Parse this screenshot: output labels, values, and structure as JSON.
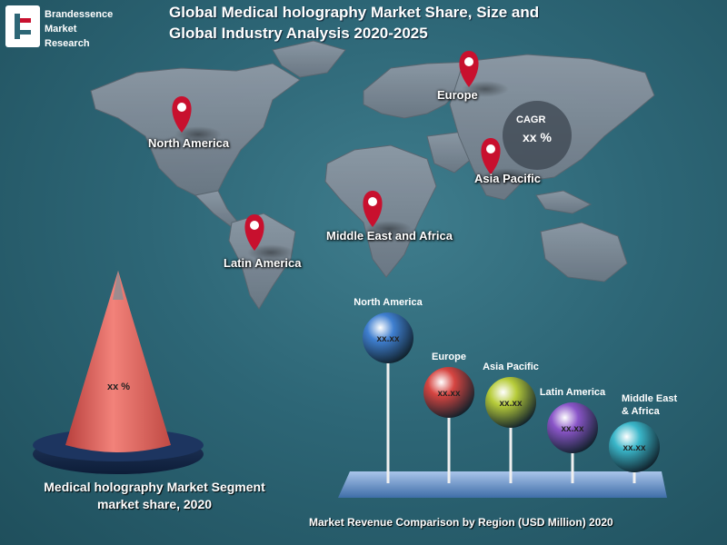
{
  "brand": {
    "line1": "Brandessence",
    "line2": "Market",
    "line3": "Research"
  },
  "title": {
    "line1": "Global Medical holography Market Share, Size and",
    "line2": "Global Industry Analysis 2020-2025"
  },
  "map": {
    "regions": [
      "North America",
      "Europe",
      "Asia Pacific",
      "Middle East and Africa",
      "Latin America"
    ],
    "cagr_label": "CAGR",
    "cagr_value": "xx %"
  },
  "segment": {
    "cone_value": "xx %",
    "caption_line1": "Medical holography  Market Segment",
    "caption_line2": "market share, 2020"
  },
  "chart_data": {
    "type": "bar",
    "title": "Market Revenue Comparison by Region (USD Million) 2020",
    "categories": [
      "North America",
      "Europe",
      "Asia Pacific",
      "Latin America",
      "Middle East & Africa"
    ],
    "value_labels": [
      "xx.xx",
      "xx.xx",
      "xx.xx",
      "xx.xx",
      "xx.xx"
    ],
    "colors": [
      "#3f7fd0",
      "#d64541",
      "#b7cc3a",
      "#8a55c8",
      "#3ab6c9"
    ]
  }
}
